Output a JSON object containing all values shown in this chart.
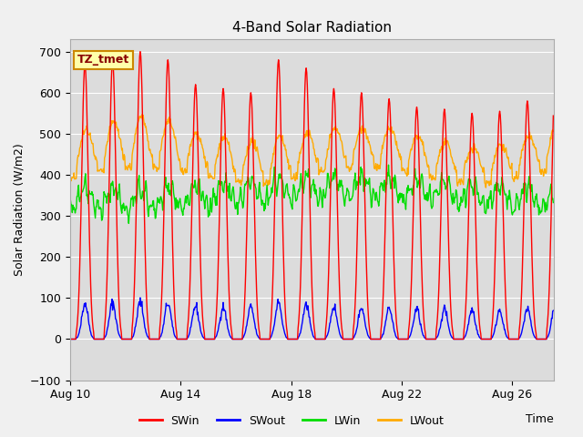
{
  "title": "4-Band Solar Radiation",
  "xlabel": "Time",
  "ylabel": "Solar Radiation (W/m2)",
  "ylim": [
    -100,
    730
  ],
  "xlim_days": [
    0,
    17.5
  ],
  "x_tick_labels": [
    "Aug 10",
    "Aug 14",
    "Aug 18",
    "Aug 22",
    "Aug 26"
  ],
  "x_tick_positions": [
    0,
    4,
    8,
    12,
    16
  ],
  "annotation_text": "TZ_tmet",
  "legend_labels": [
    "SWin",
    "SWout",
    "LWin",
    "LWout"
  ],
  "line_colors": [
    "#ff0000",
    "#0000ff",
    "#00dd00",
    "#ffaa00"
  ],
  "plot_bg_color": "#dcdcdc",
  "fig_bg_color": "#f0f0f0",
  "grid_color": "#ffffff",
  "yticks": [
    -100,
    0,
    100,
    200,
    300,
    400,
    500,
    600,
    700
  ]
}
